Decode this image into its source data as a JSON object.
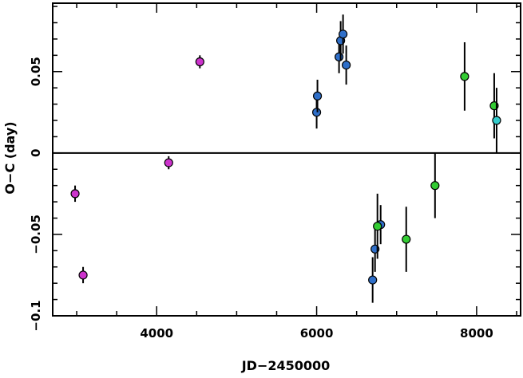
{
  "chart_data": {
    "type": "scatter",
    "title": "",
    "xlabel": "JD−2450000",
    "ylabel": "O−C (day)",
    "xlim": [
      2700,
      8550
    ],
    "ylim": [
      -0.1,
      0.092
    ],
    "x_ticks": [
      {
        "value": 4000,
        "label": "4000"
      },
      {
        "value": 6000,
        "label": "6000"
      },
      {
        "value": 8000,
        "label": "8000"
      }
    ],
    "y_ticks": [
      {
        "value": -0.1,
        "label": "−0.1"
      },
      {
        "value": -0.05,
        "label": "−0.05"
      },
      {
        "value": 0,
        "label": "0"
      },
      {
        "value": 0.05,
        "label": "0.05"
      }
    ],
    "zero_line": true,
    "grid": false,
    "legend": "none",
    "series": [
      {
        "color": "#cc33cc",
        "points": [
          {
            "x": 2980,
            "y": -0.025,
            "err": 0.005
          },
          {
            "x": 3080,
            "y": -0.075,
            "err": 0.005
          },
          {
            "x": 4150,
            "y": -0.006,
            "err": 0.004
          },
          {
            "x": 4540,
            "y": 0.056,
            "err": 0.004
          }
        ]
      },
      {
        "color": "#2f6fc9",
        "points": [
          {
            "x": 6000,
            "y": 0.025,
            "err": 0.01
          },
          {
            "x": 6010,
            "y": 0.035,
            "err": 0.01
          },
          {
            "x": 6280,
            "y": 0.059,
            "err": 0.01
          },
          {
            "x": 6300,
            "y": 0.069,
            "err": 0.012
          },
          {
            "x": 6330,
            "y": 0.073,
            "err": 0.012
          },
          {
            "x": 6370,
            "y": 0.054,
            "err": 0.012
          },
          {
            "x": 6700,
            "y": -0.078,
            "err": 0.014
          },
          {
            "x": 6730,
            "y": -0.059,
            "err": 0.014
          },
          {
            "x": 6800,
            "y": -0.044,
            "err": 0.012
          }
        ]
      },
      {
        "color": "#33cc33",
        "points": [
          {
            "x": 6760,
            "y": -0.045,
            "err": 0.02
          },
          {
            "x": 7120,
            "y": -0.053,
            "err": 0.02
          },
          {
            "x": 7480,
            "y": -0.02,
            "err": 0.02
          },
          {
            "x": 7850,
            "y": 0.047,
            "err": 0.021
          },
          {
            "x": 8220,
            "y": 0.029,
            "err": 0.02
          }
        ]
      },
      {
        "color": "#33cccc",
        "points": [
          {
            "x": 8250,
            "y": 0.02,
            "err": 0.02
          }
        ]
      }
    ]
  }
}
